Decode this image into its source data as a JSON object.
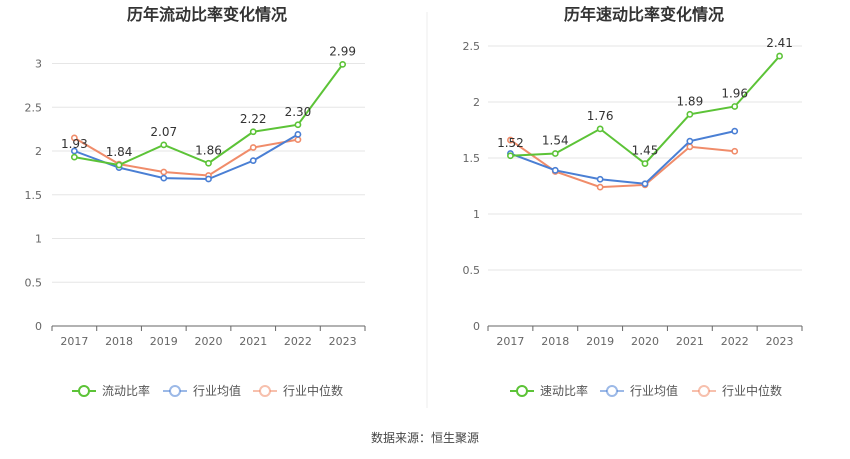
{
  "source_label": "数据来源：恒生聚源",
  "chart_data": [
    {
      "type": "line",
      "title": "历年流动比率变化情况",
      "categories": [
        "2017",
        "2018",
        "2019",
        "2020",
        "2021",
        "2022",
        "2023"
      ],
      "ylim": [
        0,
        3.2
      ],
      "yticks": [
        "0",
        "0.5",
        "1",
        "1.5",
        "2",
        "2.5",
        "3"
      ],
      "grid": true,
      "legend_position": "bottom",
      "series": [
        {
          "name": "流动比率",
          "color": "#5cc337",
          "values": [
            1.93,
            1.84,
            2.07,
            1.86,
            2.22,
            2.3,
            2.99
          ],
          "labels": [
            "1.93",
            "1.84",
            "2.07",
            "1.86",
            "2.22",
            "2.30",
            "2.99"
          ]
        },
        {
          "name": "行业均值",
          "color": "#4a7fd4",
          "values": [
            2.0,
            1.81,
            1.69,
            1.68,
            1.89,
            2.19,
            null
          ]
        },
        {
          "name": "行业中位数",
          "color": "#f08c6a",
          "values": [
            2.15,
            1.85,
            1.76,
            1.72,
            2.04,
            2.13,
            null
          ]
        }
      ]
    },
    {
      "type": "line",
      "title": "历年速动比率变化情况",
      "categories": [
        "2017",
        "2018",
        "2019",
        "2020",
        "2021",
        "2022",
        "2023"
      ],
      "ylim": [
        0,
        2.5
      ],
      "yticks": [
        "0",
        "0.5",
        "1",
        "1.5",
        "2",
        "2.5"
      ],
      "grid": true,
      "legend_position": "bottom",
      "series": [
        {
          "name": "速动比率",
          "color": "#5cc337",
          "values": [
            1.52,
            1.54,
            1.76,
            1.45,
            1.89,
            1.96,
            2.41
          ],
          "labels": [
            "1.52",
            "1.54",
            "1.76",
            "1.45",
            "1.89",
            "1.96",
            "2.41"
          ]
        },
        {
          "name": "行业均值",
          "color": "#4a7fd4",
          "values": [
            1.54,
            1.39,
            1.31,
            1.27,
            1.65,
            1.74,
            null
          ]
        },
        {
          "name": "行业中位数",
          "color": "#f08c6a",
          "values": [
            1.66,
            1.38,
            1.24,
            1.26,
            1.6,
            1.56,
            null
          ]
        }
      ]
    }
  ]
}
